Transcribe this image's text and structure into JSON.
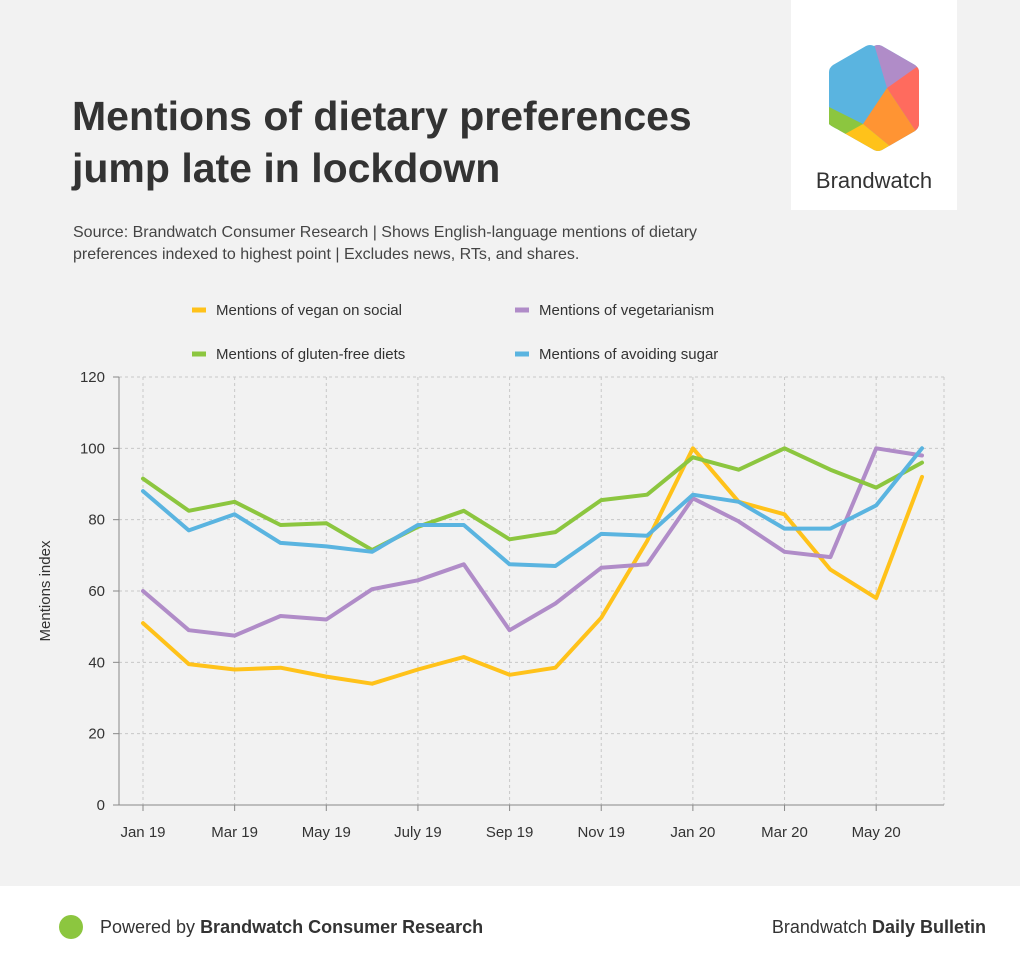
{
  "header": {
    "title": "Mentions of dietary preferences jump late in lockdown",
    "subtitle": "Source: Brandwatch Consumer Research | Shows English-language mentions of dietary preferences indexed to highest point | Excludes news, RTs, and shares."
  },
  "logo": {
    "text": "Brandwatch"
  },
  "footer": {
    "powered_prefix": "Powered by ",
    "powered_name": "Brandwatch Consumer Research",
    "brand_prefix": "Brandwatch ",
    "brand_name": "Daily Bulletin",
    "dot_color": "#8cc63f"
  },
  "chart_data": {
    "type": "line",
    "title": "Mentions of dietary preferences jump late in lockdown",
    "xlabel": "",
    "ylabel": "Mentions index",
    "ylim": [
      0,
      120
    ],
    "yticks": [
      0,
      20,
      40,
      60,
      80,
      100,
      120
    ],
    "x_tick_labels": [
      "Jan 19",
      "Mar 19",
      "May 19",
      "July 19",
      "Sep 19",
      "Nov 19",
      "Jan 20",
      "Mar 20",
      "May 20"
    ],
    "categories": [
      "Jan 19",
      "Feb 19",
      "Mar 19",
      "Apr 19",
      "May 19",
      "Jun 19",
      "Jul 19",
      "Aug 19",
      "Sep 19",
      "Oct 19",
      "Nov 19",
      "Dec 19",
      "Jan 20",
      "Feb 20",
      "Mar 20",
      "Apr 20",
      "May 20",
      "Jun 20"
    ],
    "grid": true,
    "legend_position": "top",
    "series": [
      {
        "name": "Mentions of vegan on social",
        "color": "#ffc21a",
        "values": [
          51,
          39.5,
          38,
          38.5,
          36,
          34,
          38,
          41.5,
          36.5,
          38.5,
          52.5,
          74,
          100,
          85,
          81.5,
          66,
          58,
          92
        ]
      },
      {
        "name": "Mentions of vegetarianism",
        "color": "#b08cc8",
        "values": [
          60,
          49,
          47.5,
          53,
          52,
          60.5,
          63,
          67.5,
          49,
          56.5,
          66.5,
          67.5,
          86,
          79.5,
          71,
          69.5,
          100,
          98
        ]
      },
      {
        "name": "Mentions of gluten-free diets",
        "color": "#8cc63f",
        "values": [
          91.5,
          82.5,
          85,
          78.5,
          79,
          71.5,
          78,
          82.5,
          74.5,
          76.5,
          85.5,
          87,
          97.5,
          94,
          100,
          94,
          89,
          96
        ]
      },
      {
        "name": "Mentions of avoiding sugar",
        "color": "#5ab4e0",
        "values": [
          88,
          77,
          81.5,
          73.5,
          72.5,
          71,
          78.5,
          78.5,
          67.5,
          67,
          76,
          75.5,
          87,
          85,
          77.5,
          77.5,
          84,
          100
        ]
      }
    ]
  }
}
